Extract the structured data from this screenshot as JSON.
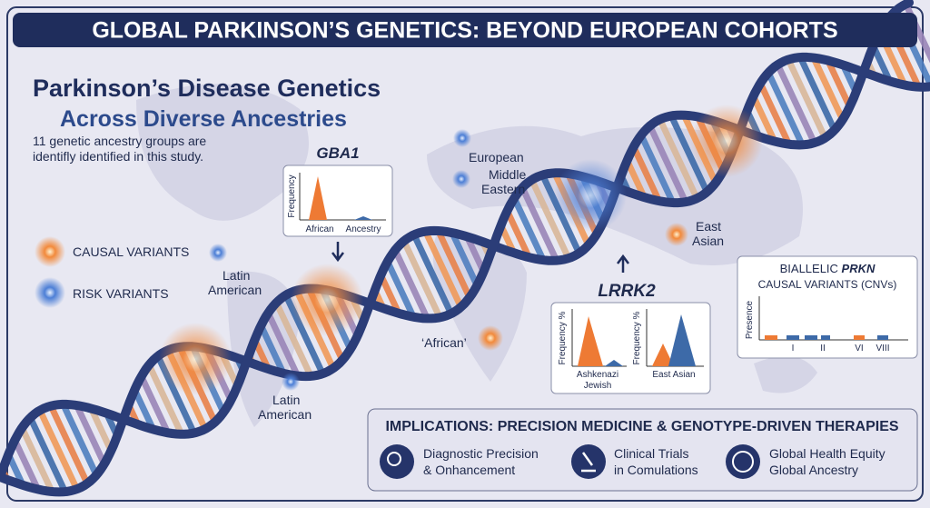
{
  "header": {
    "title": "GLOBAL PARKINSON’S GENETICS: BEYOND EUROPEAN COHORTS"
  },
  "heading": {
    "lines": [
      "Parkinson’s Disease Genetics",
      "Across Diverse Ancestries"
    ],
    "subtitle": [
      "11 genetic ancestry groups are",
      "identifly identified in this study."
    ]
  },
  "legend": {
    "items": [
      "CAUSAL VARIANTS",
      "RISK VARIANTS"
    ]
  },
  "regions": {
    "european": [
      "European"
    ],
    "middle_eastern": [
      "Middle",
      "Eastern"
    ],
    "east_asian": [
      "East",
      "Asian"
    ],
    "latin_american_north": [
      "Latin",
      "American"
    ],
    "african": [
      "‘African’"
    ],
    "latin_american_south": [
      "Latin",
      "American"
    ]
  },
  "gba1": {
    "title": "GBA1",
    "y_label": "Frequency",
    "x_labels": [
      "African",
      "Ancestry"
    ]
  },
  "lrrk2": {
    "title": "LRRK2",
    "y_label": "Frequency %",
    "x_labels": [
      [
        "Ashkenazi",
        "Jewish"
      ],
      [
        "East Asian"
      ]
    ]
  },
  "prkn": {
    "title": [
      "BIALLELIC ",
      "PRKN"
    ],
    "subtitle": "CAUSAL VARIANTS (CNVs)",
    "y_label": "Presence",
    "x_labels": [
      "I",
      "II",
      "VI",
      "VIII"
    ]
  },
  "implications": {
    "title": "IMPLICATIONS: PRECISION MEDICINE & GENOTYPE-DRIVEN THERAPIES",
    "items": [
      [
        "Diagnostic Precision",
        "& Onhancement"
      ],
      [
        "Clinical Trials",
        "in Comulations"
      ],
      [
        "Global Health Equity",
        "Global Ancestry"
      ]
    ]
  }
}
